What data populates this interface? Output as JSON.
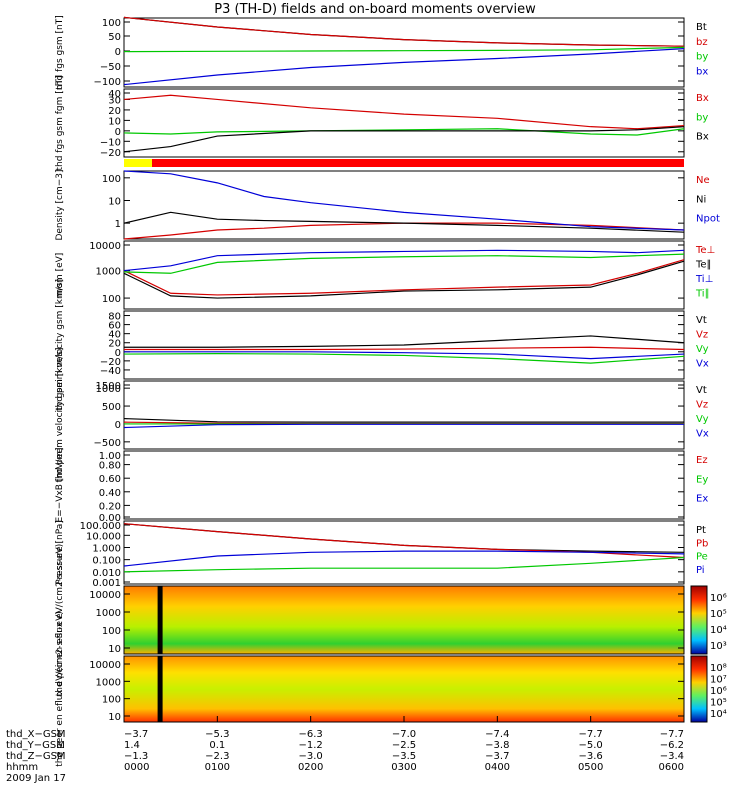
{
  "title": "P3 (TH-D) fields and on-board moments overview",
  "colors": {
    "black": "#000000",
    "red": "#d40000",
    "green": "#00c800",
    "blue": "#0000d8",
    "status_yellow": "#ffff00",
    "status_red": "#ff0000"
  },
  "chart_data": [
    {
      "type": "line",
      "ylabel": "thd fgs gsm [nT]",
      "ylim": [
        -120,
        110
      ],
      "yticks": [
        "100",
        "50",
        "0",
        "−50",
        "−100"
      ],
      "ytick_values": [
        100,
        50,
        0,
        -50,
        -100
      ],
      "x": [
        0,
        10,
        20,
        30,
        40,
        50,
        60
      ],
      "series": [
        {
          "name": "Bt",
          "color": "black",
          "values": [
            112,
            80,
            55,
            38,
            27,
            20,
            16
          ]
        },
        {
          "name": "bz",
          "color": "red",
          "values": [
            112,
            80,
            55,
            38,
            27,
            20,
            16
          ]
        },
        {
          "name": "by",
          "color": "green",
          "values": [
            -2,
            -1,
            0,
            1,
            2,
            4,
            12
          ]
        },
        {
          "name": "bx",
          "color": "blue",
          "values": [
            -112,
            -80,
            -55,
            -38,
            -25,
            -10,
            8
          ]
        }
      ]
    },
    {
      "type": "line",
      "ylabel": "thd fgs gsm fgm [nT]",
      "ylim": [
        -25,
        40
      ],
      "yticks": [
        "40",
        "30",
        "20",
        "10",
        "0",
        "−10",
        "−20"
      ],
      "ytick_values": [
        40,
        30,
        20,
        10,
        0,
        -10,
        -20
      ],
      "x": [
        0,
        5,
        10,
        20,
        30,
        40,
        50,
        55,
        60
      ],
      "series": [
        {
          "name": "Bx",
          "color": "red",
          "values": [
            30,
            34,
            30,
            22,
            16,
            12,
            4,
            2,
            5
          ]
        },
        {
          "name": "by",
          "color": "green",
          "values": [
            -2,
            -3,
            -1,
            0,
            1,
            2,
            -3,
            -4,
            2
          ]
        },
        {
          "name": "Bx",
          "color": "black",
          "values": [
            -20,
            -15,
            -5,
            0,
            0,
            0,
            0,
            1,
            4
          ]
        }
      ]
    },
    {
      "type": "line",
      "ylabel": "Density [cm−3]",
      "yscale": "log",
      "ylim": [
        0.2,
        200
      ],
      "yticks": [
        "100",
        "10",
        "1"
      ],
      "ytick_values": [
        100,
        10,
        1
      ],
      "x": [
        0,
        5,
        10,
        15,
        20,
        30,
        40,
        50,
        60
      ],
      "series": [
        {
          "name": "Ne",
          "color": "red",
          "values": [
            0.2,
            0.3,
            0.5,
            0.6,
            0.8,
            1.0,
            1.0,
            0.8,
            0.5
          ]
        },
        {
          "name": "Ni",
          "color": "black",
          "values": [
            1.0,
            3.0,
            1.5,
            1.3,
            1.2,
            1.0,
            0.8,
            0.6,
            0.4
          ]
        },
        {
          "name": "Npot",
          "color": "blue",
          "values": [
            200,
            150,
            60,
            15,
            8,
            3,
            1.5,
            0.7,
            0.5
          ]
        }
      ]
    },
    {
      "type": "line",
      "ylabel": "mom [eV]",
      "yscale": "log",
      "ylim": [
        40,
        12000
      ],
      "yticks": [
        "10000",
        "1000",
        "100"
      ],
      "ytick_values": [
        10000,
        1000,
        100
      ],
      "x": [
        0,
        5,
        10,
        20,
        30,
        40,
        50,
        55,
        60
      ],
      "series": [
        {
          "name": "Te⊥",
          "color": "red",
          "values": [
            1000,
            150,
            130,
            150,
            200,
            250,
            300,
            800,
            2500
          ]
        },
        {
          "name": "Te∥",
          "color": "black",
          "values": [
            800,
            120,
            100,
            120,
            180,
            200,
            250,
            700,
            2200
          ]
        },
        {
          "name": "Ti⊥",
          "color": "blue",
          "values": [
            1000,
            1500,
            3500,
            4500,
            5000,
            5500,
            5000,
            4500,
            5500
          ]
        },
        {
          "name": "Ti∥",
          "color": "green",
          "values": [
            900,
            800,
            2000,
            2800,
            3200,
            3500,
            3000,
            3500,
            4000
          ]
        }
      ]
    },
    {
      "type": "line",
      "ylabel": "thd peim velocity gsm [km/s]",
      "ylim": [
        -60,
        90
      ],
      "yticks": [
        "80",
        "60",
        "40",
        "20",
        "0",
        "−20",
        "−40"
      ],
      "ytick_values": [
        80,
        60,
        40,
        20,
        0,
        -20,
        -40
      ],
      "x": [
        0,
        10,
        20,
        30,
        40,
        50,
        60
      ],
      "series": [
        {
          "name": "Vt",
          "color": "black",
          "values": [
            10,
            10,
            12,
            15,
            25,
            35,
            20
          ]
        },
        {
          "name": "Vz",
          "color": "red",
          "values": [
            5,
            5,
            5,
            6,
            8,
            10,
            5
          ]
        },
        {
          "name": "Vy",
          "color": "green",
          "values": [
            -5,
            -4,
            -5,
            -8,
            -15,
            -25,
            -10
          ]
        },
        {
          "name": "Vx",
          "color": "blue",
          "values": [
            0,
            0,
            0,
            -2,
            -5,
            -15,
            -5
          ]
        }
      ]
    },
    {
      "type": "line",
      "ylabel": "thd peem velocity gsm [km/s]",
      "ylim": [
        -700,
        1200
      ],
      "yticks": [
        "1500",
        "1000",
        "500",
        "0",
        "−500"
      ],
      "ytick_values": [
        1500,
        1000,
        500,
        0,
        -500
      ],
      "x": [
        0,
        10,
        20,
        30,
        40,
        50,
        60
      ],
      "series": [
        {
          "name": "Vt",
          "color": "black",
          "values": [
            150,
            60,
            50,
            50,
            50,
            50,
            50
          ]
        },
        {
          "name": "Vz",
          "color": "red",
          "values": [
            50,
            20,
            10,
            10,
            10,
            10,
            10
          ]
        },
        {
          "name": "Vy",
          "color": "green",
          "values": [
            0,
            0,
            0,
            0,
            0,
            0,
            0
          ]
        },
        {
          "name": "Vx",
          "color": "blue",
          "values": [
            -100,
            -20,
            -10,
            -10,
            -10,
            -10,
            -10
          ]
        }
      ]
    },
    {
      "type": "line",
      "ylabel": "E=−VxB [mV/m]",
      "ylim": [
        0,
        1.0
      ],
      "yticks": [
        "1.00",
        "0.80",
        "0.60",
        "0.40",
        "0.20",
        "0.00"
      ],
      "ytick_values": [
        1.0,
        0.8,
        0.6,
        0.4,
        0.2,
        0.0
      ],
      "x": [],
      "series": [
        {
          "name": "Ez",
          "color": "red",
          "values": []
        },
        {
          "name": "Ey",
          "color": "green",
          "values": []
        },
        {
          "name": "Ex",
          "color": "blue",
          "values": []
        }
      ]
    },
    {
      "type": "line",
      "ylabel": "Pressure [nPa]",
      "yscale": "log",
      "ylim": [
        0.001,
        150
      ],
      "yticks": [
        "100.000",
        "10.000",
        "1.000",
        "0.100",
        "0.010",
        "0.001"
      ],
      "ytick_values": [
        100,
        10,
        1,
        0.1,
        0.01,
        0.001
      ],
      "x": [
        0,
        10,
        20,
        30,
        40,
        50,
        60
      ],
      "series": [
        {
          "name": "Pt",
          "color": "black",
          "values": [
            90,
            20,
            5,
            1.5,
            0.7,
            0.5,
            0.4
          ]
        },
        {
          "name": "Pb",
          "color": "red",
          "values": [
            90,
            20,
            5,
            1.5,
            0.7,
            0.4,
            0.15
          ]
        },
        {
          "name": "Pe",
          "color": "green",
          "values": [
            0.01,
            0.015,
            0.02,
            0.02,
            0.02,
            0.05,
            0.15
          ]
        },
        {
          "name": "Pi",
          "color": "blue",
          "values": [
            0.03,
            0.2,
            0.4,
            0.5,
            0.5,
            0.4,
            0.3
          ]
        }
      ]
    },
    {
      "type": "heatmap",
      "ylabel": "thd peir en eflux eV/(cm2-s-sr-eV)",
      "yticks": [
        "10000",
        "1000",
        "100",
        "10"
      ],
      "colorbar_ticks": [
        "10⁶",
        "10⁵",
        "10⁴",
        "10³"
      ]
    },
    {
      "type": "heatmap",
      "ylabel": "thd peer en eflux eV/(cm2-s-sr-eV)",
      "yticks": [
        "10000",
        "1000",
        "100",
        "10"
      ],
      "colorbar_ticks": [
        "10⁸",
        "10⁷",
        "10⁶",
        "10⁵",
        "10⁴"
      ]
    }
  ],
  "xaxis": {
    "tick_labels": [
      "0000",
      "0100",
      "0200",
      "0300",
      "0400",
      "0500",
      "0600"
    ],
    "ephemeris": [
      {
        "label": "thd_X−GSM",
        "values": [
          "−3.7",
          "−5.3",
          "−6.3",
          "−7.0",
          "−7.4",
          "−7.7",
          "−7.7"
        ]
      },
      {
        "label": "thd_Y−GSM",
        "values": [
          "1.4",
          "0.1",
          "−1.2",
          "−2.5",
          "−3.8",
          "−5.0",
          "−6.2"
        ]
      },
      {
        "label": "thd_Z−GSM",
        "values": [
          "−1.3",
          "−2.3",
          "−3.0",
          "−3.5",
          "−3.7",
          "−3.6",
          "−3.4"
        ]
      },
      {
        "label": "hhmm",
        "values": [
          "0000",
          "0100",
          "0200",
          "0300",
          "0400",
          "0500",
          "0600"
        ]
      }
    ],
    "date": "2009 Jan 17"
  },
  "status_bar": {
    "yellow_until": 0.05
  }
}
